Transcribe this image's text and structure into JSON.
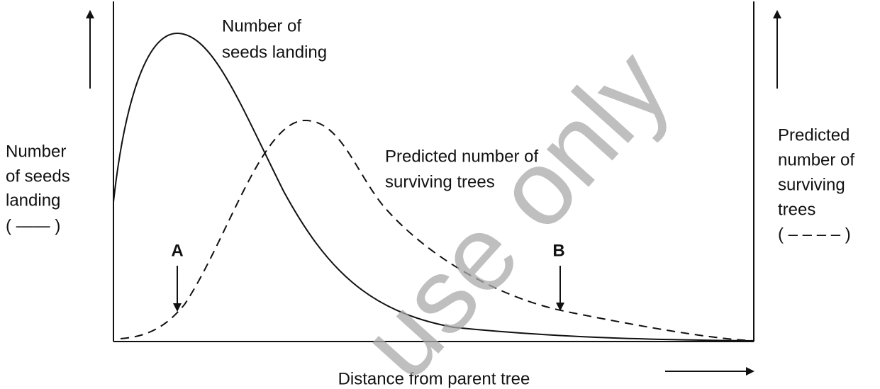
{
  "labels": {
    "seeds_curve": [
      "Number of",
      "seeds landing"
    ],
    "trees_curve": [
      "Predicted number of",
      "surviving trees"
    ],
    "left_axis": [
      "Number",
      "of seeds",
      "landing",
      "( —— )"
    ],
    "right_axis": [
      "Predicted",
      "number of",
      "surviving",
      "trees",
      "( – – – – )"
    ],
    "point_a": "A",
    "point_b": "B",
    "x_axis": "Distance from parent tree",
    "watermark": "use only"
  }
}
